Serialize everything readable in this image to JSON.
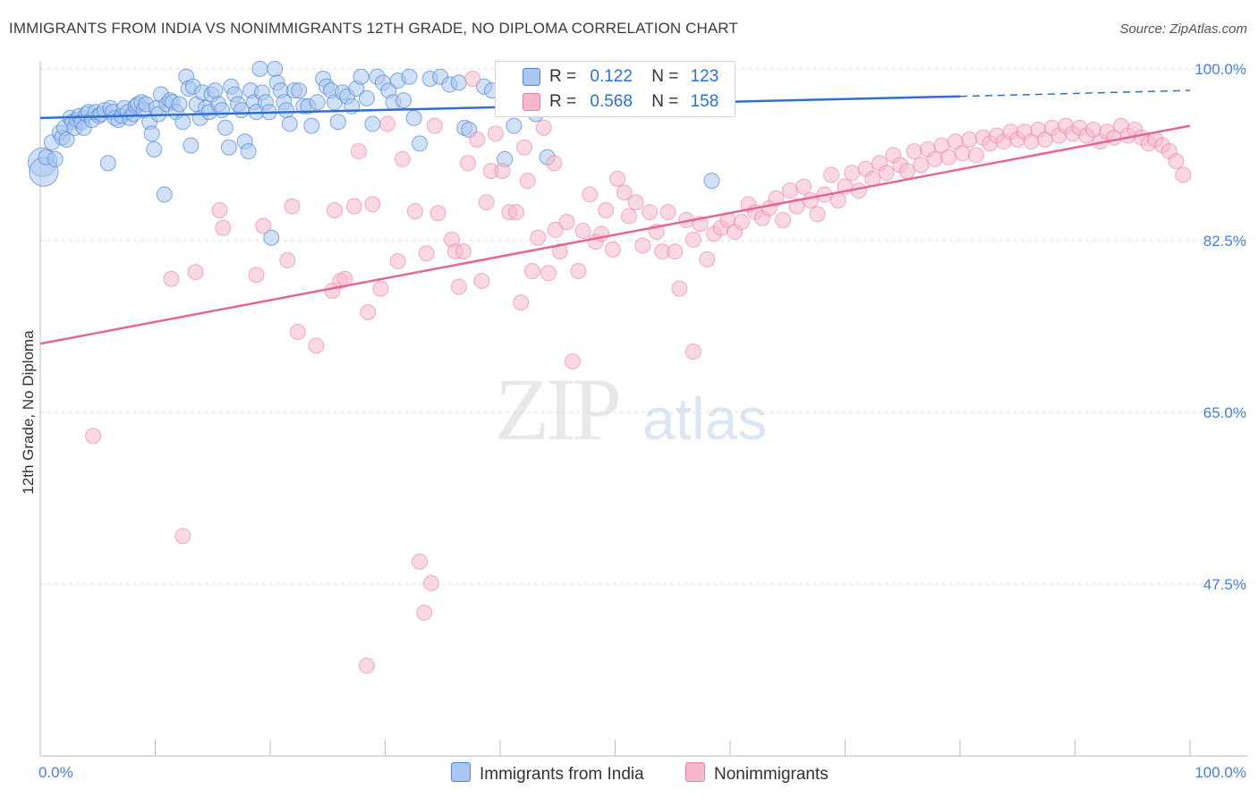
{
  "header": {
    "title": "IMMIGRANTS FROM INDIA VS NONIMMIGRANTS 12TH GRADE, NO DIPLOMA CORRELATION CHART",
    "source": "Source: ZipAtlas.com"
  },
  "watermark": {
    "zip": "ZIP",
    "atlas": "atlas"
  },
  "legend_top": {
    "rows": [
      {
        "r_label": "R =",
        "r_value": "0.122",
        "n_label": "N =",
        "n_value": "123"
      },
      {
        "r_label": "R =",
        "r_value": "0.568",
        "n_label": "N =",
        "n_value": "158"
      }
    ]
  },
  "legend_bottom": {
    "india": "Immigrants from India",
    "nonimm": "Nonimmigrants"
  },
  "colors": {
    "india_fill": "#a9c7f0",
    "india_stroke": "#4f86d6",
    "india_line": "#2f6fd0",
    "nonimm_fill": "#f6b8cb",
    "nonimm_stroke": "#e77fa0",
    "nonimm_line": "#e36791",
    "tick_text": "#4a7fd0",
    "grid": "#dcdcdc"
  },
  "chart_data": {
    "type": "scatter",
    "title": "IMMIGRANTS FROM INDIA VS NONIMMIGRANTS 12TH GRADE, NO DIPLOMA CORRELATION CHART",
    "xlabel": "",
    "ylabel": "12th Grade, No Diploma",
    "xlim": [
      0,
      100
    ],
    "ylim": [
      30,
      100
    ],
    "x_tick_labels": [
      "0.0%",
      "100.0%"
    ],
    "y_ticks": [
      47.5,
      65.0,
      82.5,
      100.0
    ],
    "y_tick_labels": [
      "47.5%",
      "65.0%",
      "82.5%",
      "100.0%"
    ],
    "grid": "horizontal dashed",
    "legend_position": "top-center",
    "series": [
      {
        "name": "Immigrants from India",
        "r": 0.122,
        "n": 123,
        "trend": {
          "x": [
            0,
            80,
            100
          ],
          "y": [
            95.0,
            97.2,
            97.8
          ],
          "solid_until_x": 80
        },
        "points": [
          [
            0.2,
            90.5
          ],
          [
            0.3,
            89.5
          ],
          [
            0.5,
            91
          ],
          [
            1,
            92.5
          ],
          [
            1.3,
            90.8
          ],
          [
            1.7,
            93.5
          ],
          [
            1.9,
            93
          ],
          [
            2.1,
            94
          ],
          [
            2.3,
            92.8
          ],
          [
            2.6,
            95
          ],
          [
            2.8,
            94.6
          ],
          [
            3,
            94
          ],
          [
            3.2,
            94.8
          ],
          [
            3.4,
            95.2
          ],
          [
            3.6,
            94.6
          ],
          [
            3.8,
            94
          ],
          [
            4,
            95.4
          ],
          [
            4.2,
            95.6
          ],
          [
            4.5,
            94.8
          ],
          [
            4.8,
            95.6
          ],
          [
            5.1,
            95.2
          ],
          [
            5.3,
            95.4
          ],
          [
            5.6,
            95.8
          ],
          [
            5.9,
            90.4
          ],
          [
            6.1,
            96
          ],
          [
            6.3,
            95.6
          ],
          [
            6.5,
            95
          ],
          [
            6.8,
            94.8
          ],
          [
            7.1,
            95.2
          ],
          [
            7.3,
            96
          ],
          [
            7.6,
            95.6
          ],
          [
            7.8,
            95
          ],
          [
            8.1,
            95.4
          ],
          [
            8.3,
            96.2
          ],
          [
            8.5,
            96.4
          ],
          [
            8.8,
            96.6
          ],
          [
            9,
            95.8
          ],
          [
            9.2,
            96.4
          ],
          [
            9.5,
            94.6
          ],
          [
            9.7,
            93.4
          ],
          [
            9.9,
            91.8
          ],
          [
            10.1,
            96
          ],
          [
            10.3,
            95.4
          ],
          [
            10.5,
            97.4
          ],
          [
            10.8,
            87.2
          ],
          [
            11,
            96.4
          ],
          [
            11.3,
            96.8
          ],
          [
            11.5,
            96.6
          ],
          [
            11.8,
            95.6
          ],
          [
            12.1,
            96.4
          ],
          [
            12.4,
            94.6
          ],
          [
            12.7,
            99.2
          ],
          [
            12.9,
            98
          ],
          [
            13.1,
            92.2
          ],
          [
            13.3,
            98.2
          ],
          [
            13.6,
            96.4
          ],
          [
            13.9,
            95
          ],
          [
            14.1,
            97.6
          ],
          [
            14.4,
            96
          ],
          [
            14.7,
            95.6
          ],
          [
            14.9,
            97.4
          ],
          [
            15.2,
            97.8
          ],
          [
            15.5,
            96.4
          ],
          [
            15.8,
            95.8
          ],
          [
            16.1,
            94
          ],
          [
            16.4,
            92
          ],
          [
            16.6,
            98.2
          ],
          [
            16.9,
            97.4
          ],
          [
            17.2,
            96.4
          ],
          [
            17.5,
            95.8
          ],
          [
            17.8,
            92.6
          ],
          [
            18.1,
            91.6
          ],
          [
            18.3,
            97.8
          ],
          [
            18.6,
            96.6
          ],
          [
            18.8,
            95.6
          ],
          [
            19.1,
            100
          ],
          [
            19.3,
            97.6
          ],
          [
            19.6,
            96.6
          ],
          [
            19.9,
            95.6
          ],
          [
            20.1,
            82.8
          ],
          [
            20.4,
            100
          ],
          [
            20.6,
            98.6
          ],
          [
            20.9,
            97.8
          ],
          [
            21.2,
            96.6
          ],
          [
            21.4,
            95.8
          ],
          [
            21.7,
            94.4
          ],
          [
            22.1,
            97.8
          ],
          [
            22.5,
            97.8
          ],
          [
            22.9,
            96.2
          ],
          [
            23.3,
            96.2
          ],
          [
            23.6,
            94.2
          ],
          [
            24.1,
            96.6
          ],
          [
            24.6,
            99
          ],
          [
            24.9,
            98.2
          ],
          [
            25.3,
            97.8
          ],
          [
            25.6,
            96.6
          ],
          [
            25.9,
            94.6
          ],
          [
            26.3,
            97.6
          ],
          [
            26.7,
            97.2
          ],
          [
            27.1,
            96.2
          ],
          [
            27.5,
            98
          ],
          [
            27.9,
            99.2
          ],
          [
            28.4,
            97
          ],
          [
            28.9,
            94.4
          ],
          [
            29.3,
            99.2
          ],
          [
            29.8,
            98.6
          ],
          [
            30.3,
            97.8
          ],
          [
            30.7,
            96.6
          ],
          [
            31.1,
            98.8
          ],
          [
            31.6,
            96.8
          ],
          [
            32.1,
            99.2
          ],
          [
            32.5,
            95
          ],
          [
            33,
            92.4
          ],
          [
            33.9,
            99
          ],
          [
            34.8,
            99.2
          ],
          [
            35.6,
            98.4
          ],
          [
            36.4,
            98.6
          ],
          [
            36.9,
            94
          ],
          [
            37.3,
            93.8
          ],
          [
            38.6,
            98.2
          ],
          [
            39.3,
            97.8
          ],
          [
            40.4,
            90.8
          ],
          [
            41.2,
            94.2
          ],
          [
            43.1,
            95.4
          ],
          [
            44.1,
            91
          ],
          [
            58.4,
            88.6
          ]
        ]
      },
      {
        "name": "Nonimmigrants",
        "r": 0.568,
        "n": 158,
        "trend": {
          "x": [
            0,
            100
          ],
          "y": [
            72.0,
            94.2
          ]
        },
        "points": [
          [
            4.6,
            62.6
          ],
          [
            11.4,
            78.6
          ],
          [
            12.4,
            52.4
          ],
          [
            13.5,
            79.3
          ],
          [
            15.6,
            85.6
          ],
          [
            15.9,
            83.8
          ],
          [
            18.8,
            79
          ],
          [
            19.4,
            84
          ],
          [
            21.5,
            80.5
          ],
          [
            21.9,
            86
          ],
          [
            22.4,
            73.2
          ],
          [
            24,
            71.8
          ],
          [
            25.4,
            77.4
          ],
          [
            25.6,
            85.6
          ],
          [
            26.1,
            78.4
          ],
          [
            26.5,
            78.6
          ],
          [
            27.3,
            86
          ],
          [
            27.7,
            91.6
          ],
          [
            28.5,
            75.2
          ],
          [
            28.9,
            86.2
          ],
          [
            29.6,
            77.6
          ],
          [
            30.2,
            94.4
          ],
          [
            31.1,
            80.4
          ],
          [
            31.5,
            90.8
          ],
          [
            32.6,
            85.5
          ],
          [
            33,
            49.8
          ],
          [
            33.6,
            81.2
          ],
          [
            34,
            47.6
          ],
          [
            34.6,
            85.3
          ],
          [
            35.8,
            82.6
          ],
          [
            36.1,
            81.4
          ],
          [
            36.4,
            77.8
          ],
          [
            36.8,
            81.4
          ],
          [
            37.2,
            90.4
          ],
          [
            37.6,
            99
          ],
          [
            38,
            92.8
          ],
          [
            38.4,
            78.4
          ],
          [
            38.8,
            86.4
          ],
          [
            39.2,
            89.6
          ],
          [
            39.6,
            93.4
          ],
          [
            40.2,
            89.6
          ],
          [
            40.8,
            85.4
          ],
          [
            41.4,
            85.4
          ],
          [
            41.8,
            76.2
          ],
          [
            42.1,
            92
          ],
          [
            42.4,
            88.6
          ],
          [
            42.8,
            79.4
          ],
          [
            43.3,
            82.8
          ],
          [
            43.8,
            94
          ],
          [
            44.2,
            79.2
          ],
          [
            44.8,
            83.6
          ],
          [
            45.2,
            81.4
          ],
          [
            45.8,
            84.4
          ],
          [
            46.3,
            70.2
          ],
          [
            46.8,
            79.4
          ],
          [
            47.2,
            83.5
          ],
          [
            47.8,
            87.2
          ],
          [
            48.3,
            82.4
          ],
          [
            48.8,
            83.2
          ],
          [
            49.2,
            85.6
          ],
          [
            49.8,
            81.6
          ],
          [
            50.2,
            88.8
          ],
          [
            50.8,
            87.4
          ],
          [
            51.2,
            85
          ],
          [
            51.8,
            86.4
          ],
          [
            52.4,
            82
          ],
          [
            53,
            85.4
          ],
          [
            53.6,
            83.4
          ],
          [
            54.1,
            81.4
          ],
          [
            54.6,
            85.4
          ],
          [
            55.2,
            81.4
          ],
          [
            55.6,
            77.6
          ],
          [
            56.2,
            84.6
          ],
          [
            56.8,
            82.6
          ],
          [
            57.4,
            84.2
          ],
          [
            58,
            80.6
          ],
          [
            58.6,
            83.2
          ],
          [
            59.2,
            83.8
          ],
          [
            59.8,
            84.6
          ],
          [
            60.4,
            83.4
          ],
          [
            61,
            84.4
          ],
          [
            61.6,
            86.2
          ],
          [
            62.2,
            85.4
          ],
          [
            62.8,
            84.8
          ],
          [
            63.4,
            85.8
          ],
          [
            64,
            86.8
          ],
          [
            64.6,
            84.6
          ],
          [
            65.2,
            87.6
          ],
          [
            65.8,
            86
          ],
          [
            66.4,
            88
          ],
          [
            67,
            86.6
          ],
          [
            67.6,
            85.2
          ],
          [
            68.2,
            87.2
          ],
          [
            68.8,
            89.2
          ],
          [
            69.4,
            86.6
          ],
          [
            70,
            88
          ],
          [
            70.6,
            89.4
          ],
          [
            71.2,
            87.6
          ],
          [
            71.8,
            89.8
          ],
          [
            72.4,
            88.8
          ],
          [
            73,
            90.4
          ],
          [
            73.6,
            89.4
          ],
          [
            74.2,
            91.2
          ],
          [
            74.8,
            90.2
          ],
          [
            75.4,
            89.6
          ],
          [
            76,
            91.6
          ],
          [
            76.6,
            90.2
          ],
          [
            77.2,
            91.8
          ],
          [
            77.8,
            90.8
          ],
          [
            78.4,
            92.2
          ],
          [
            79,
            91
          ],
          [
            79.6,
            92.6
          ],
          [
            80.2,
            91.4
          ],
          [
            80.8,
            92.8
          ],
          [
            81.4,
            91.2
          ],
          [
            82,
            93
          ],
          [
            82.6,
            92.4
          ],
          [
            83.2,
            93.2
          ],
          [
            83.8,
            92.6
          ],
          [
            84.4,
            93.6
          ],
          [
            85,
            92.8
          ],
          [
            85.6,
            93.6
          ],
          [
            86.2,
            92.6
          ],
          [
            86.8,
            93.8
          ],
          [
            87.4,
            92.8
          ],
          [
            88,
            94
          ],
          [
            88.6,
            93.2
          ],
          [
            89.2,
            94.2
          ],
          [
            89.8,
            93.4
          ],
          [
            90.4,
            94
          ],
          [
            91,
            93.2
          ],
          [
            91.6,
            93.8
          ],
          [
            92.2,
            92.6
          ],
          [
            92.8,
            93.6
          ],
          [
            93.4,
            93
          ],
          [
            94,
            94.2
          ],
          [
            94.6,
            93.2
          ],
          [
            95.2,
            93.8
          ],
          [
            95.8,
            93
          ],
          [
            96.4,
            92.4
          ],
          [
            97,
            92.8
          ],
          [
            97.6,
            92.2
          ],
          [
            98.2,
            91.6
          ],
          [
            98.8,
            90.6
          ],
          [
            99.4,
            89.2
          ],
          [
            33.4,
            44.6
          ],
          [
            28.4,
            39.2
          ],
          [
            34.3,
            94.2
          ],
          [
            44.7,
            90.4
          ],
          [
            56.8,
            71.2
          ]
        ]
      }
    ]
  }
}
